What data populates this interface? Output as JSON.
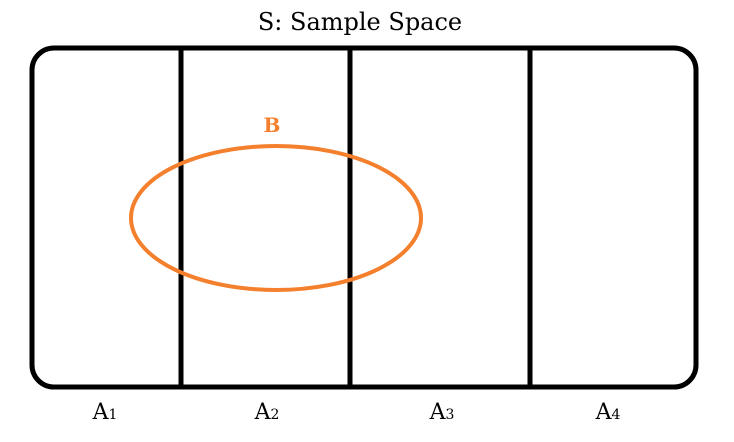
{
  "title": "S: Sample Space",
  "event": {
    "label": "B",
    "color": "#f47f2c"
  },
  "partitions": [
    {
      "letter": "A",
      "sub": "1"
    },
    {
      "letter": "A",
      "sub": "2"
    },
    {
      "letter": "A",
      "sub": "3"
    },
    {
      "letter": "A",
      "sub": "4"
    }
  ],
  "colors": {
    "outline": "#000000",
    "background": "#ffffff"
  }
}
